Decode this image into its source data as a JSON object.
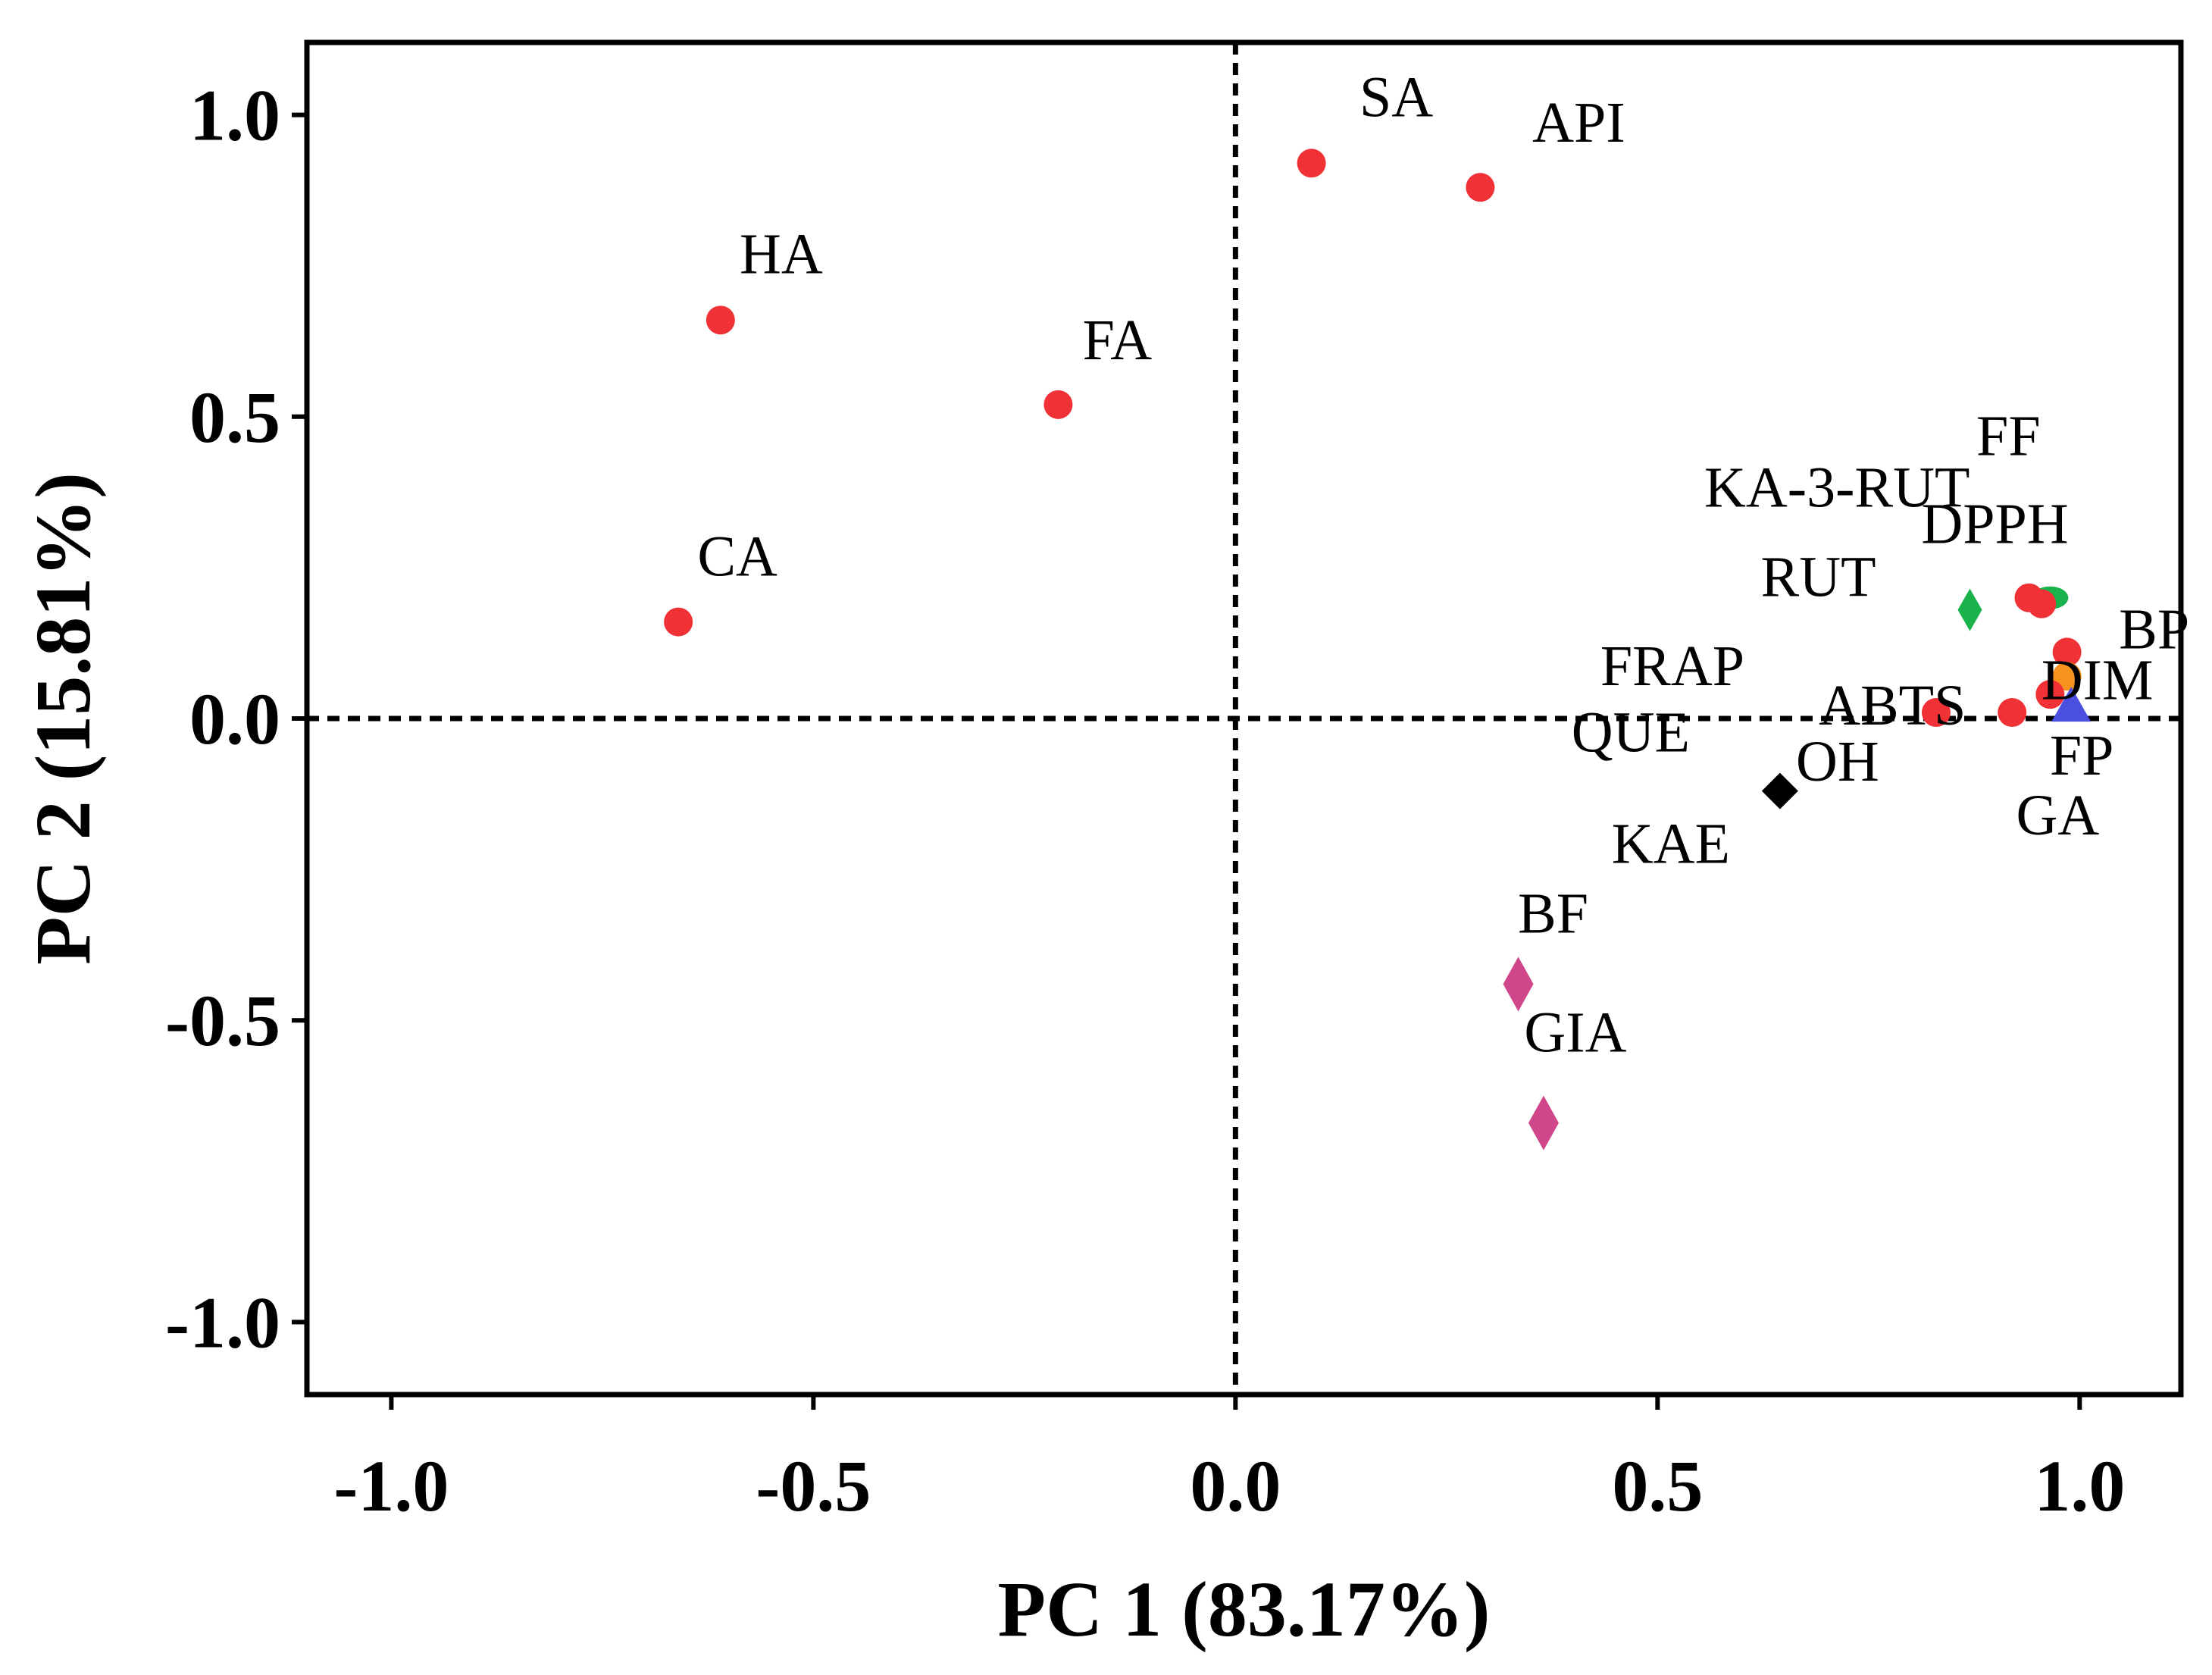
{
  "chart_data": {
    "type": "scatter",
    "title": "",
    "xlabel": "PC 1 (83.17%)",
    "ylabel": "PC 2 (15.81%)",
    "xlim": [
      -1.1,
      1.12
    ],
    "ylim": [
      -1.12,
      1.12
    ],
    "xticks": [
      -1.0,
      -0.5,
      0.0,
      0.5,
      1.0
    ],
    "yticks": [
      -1.0,
      -0.5,
      0.0,
      0.5,
      1.0
    ],
    "xtick_labels": [
      "-1.0",
      "-0.5",
      "0.0",
      "0.5",
      "1.0"
    ],
    "ytick_labels": [
      "-1.0",
      "-0.5",
      "0.0",
      "0.5",
      "1.0"
    ],
    "grid": false,
    "reference_lines": {
      "x": 0.0,
      "y": 0.0,
      "style": "dashed"
    },
    "colors": {
      "variable": "#f03237",
      "green": "#19b24b",
      "black": "#000000",
      "magenta": "#d0468a",
      "orange": "#f7931e",
      "blue": "#4a4fe0"
    },
    "points": [
      {
        "name": "SA",
        "x": 0.09,
        "y": 0.92,
        "marker": "circle",
        "color": "variable"
      },
      {
        "name": "API",
        "x": 0.29,
        "y": 0.88,
        "marker": "circle",
        "color": "variable"
      },
      {
        "name": "HA",
        "x": -0.61,
        "y": 0.66,
        "marker": "circle",
        "color": "variable"
      },
      {
        "name": "FA",
        "x": -0.21,
        "y": 0.52,
        "marker": "circle",
        "color": "variable"
      },
      {
        "name": "CA",
        "x": -0.66,
        "y": 0.16,
        "marker": "circle",
        "color": "variable"
      },
      {
        "name": "RUT",
        "x": 0.87,
        "y": 0.18,
        "marker": "diamond",
        "color": "green"
      },
      {
        "name": "FF",
        "x": 0.965,
        "y": 0.2,
        "marker": "ellipse",
        "color": "green"
      },
      {
        "name": "DPPH",
        "x": 0.94,
        "y": 0.2,
        "marker": "circle",
        "color": "variable"
      },
      {
        "name": "KA-3-RUT",
        "x": 0.955,
        "y": 0.19,
        "marker": "circle",
        "color": "variable"
      },
      {
        "name": "BP",
        "x": 0.985,
        "y": 0.11,
        "marker": "circle",
        "color": "variable"
      },
      {
        "name": "DIM",
        "x": 0.985,
        "y": 0.07,
        "marker": "circle",
        "color": "orange"
      },
      {
        "name": "FP",
        "x": 0.99,
        "y": 0.02,
        "marker": "triangle",
        "color": "blue"
      },
      {
        "name": "GA",
        "x": 0.965,
        "y": 0.04,
        "marker": "circle",
        "color": "variable"
      },
      {
        "name": "ABTS",
        "x": 0.92,
        "y": 0.01,
        "marker": "circle",
        "color": "variable"
      },
      {
        "name": "OH",
        "x": 0.83,
        "y": 0.01,
        "marker": "circle",
        "color": "variable"
      },
      {
        "name": "FRAP",
        "x": 0.83,
        "y": 0.01,
        "marker": "none",
        "color": "variable"
      },
      {
        "name": "QUE",
        "x": 0.645,
        "y": -0.12,
        "marker": "none",
        "color": "black"
      },
      {
        "name": "KAE",
        "x": 0.645,
        "y": -0.12,
        "marker": "square-diamond",
        "color": "black"
      },
      {
        "name": "BF",
        "x": 0.335,
        "y": -0.44,
        "marker": "diamond",
        "color": "magenta"
      },
      {
        "name": "GIA",
        "x": 0.365,
        "y": -0.67,
        "marker": "diamond",
        "color": "magenta"
      }
    ]
  }
}
